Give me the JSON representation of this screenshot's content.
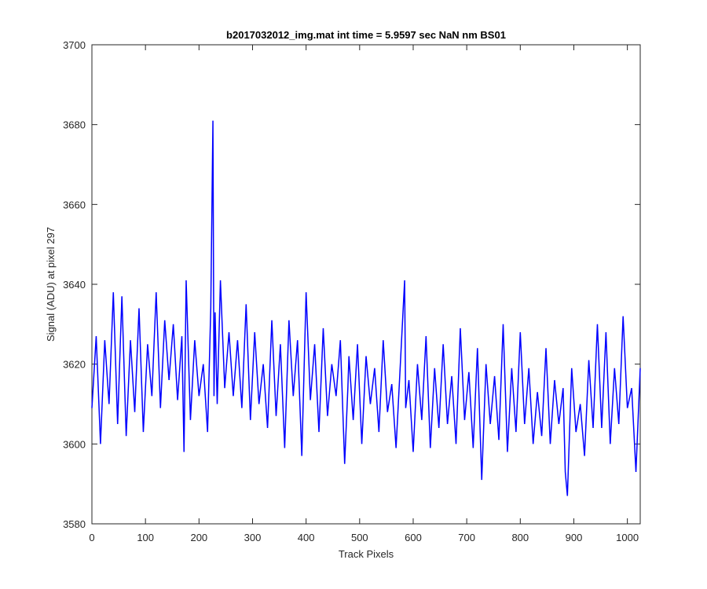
{
  "chart_data": {
    "type": "line",
    "title": "b2017032012_img.mat int time = 5.9597 sec  NaN nm BS01",
    "xlabel": "Track Pixels",
    "ylabel": "Signal (ADU) at pixel 297",
    "xlim": [
      0,
      1024
    ],
    "ylim": [
      3580,
      3700
    ],
    "xticks": [
      0,
      100,
      200,
      300,
      400,
      500,
      600,
      700,
      800,
      900,
      1000
    ],
    "yticks": [
      3580,
      3600,
      3620,
      3640,
      3660,
      3680,
      3700
    ],
    "grid": false,
    "legend": "none",
    "line_color": "#0000ff",
    "axes_color": "#262626",
    "series": [
      {
        "x": [
          0,
          8,
          16,
          24,
          32,
          40,
          48,
          56,
          64,
          72,
          80,
          88,
          96,
          104,
          112,
          120,
          128,
          136,
          144,
          152,
          160,
          168,
          172,
          176,
          184,
          192,
          200,
          208,
          216,
          222,
          226,
          228,
          230,
          234,
          240,
          248,
          256,
          264,
          272,
          280,
          288,
          296,
          304,
          312,
          320,
          328,
          336,
          344,
          352,
          360,
          368,
          376,
          384,
          392,
          400,
          408,
          416,
          424,
          432,
          440,
          448,
          456,
          464,
          472,
          478,
          480,
          488,
          496,
          504,
          512,
          520,
          528,
          536,
          544,
          552,
          560,
          568,
          576,
          584,
          586,
          592,
          600,
          608,
          616,
          624,
          632,
          640,
          648,
          656,
          664,
          672,
          680,
          688,
          696,
          704,
          712,
          720,
          728,
          736,
          744,
          752,
          760,
          768,
          776,
          784,
          792,
          800,
          808,
          816,
          824,
          832,
          840,
          848,
          856,
          864,
          872,
          880,
          884,
          888,
          896,
          904,
          912,
          920,
          928,
          936,
          944,
          952,
          960,
          968,
          976,
          984,
          992,
          1000,
          1008,
          1016,
          1024
        ],
        "y": [
          3609,
          3627,
          3600,
          3626,
          3610,
          3638,
          3605,
          3637,
          3602,
          3626,
          3608,
          3634,
          3603,
          3625,
          3612,
          3638,
          3609,
          3631,
          3616,
          3630,
          3611,
          3627,
          3598,
          3641,
          3606,
          3626,
          3612,
          3620,
          3603,
          3634,
          3681,
          3612,
          3633,
          3610,
          3641,
          3614,
          3628,
          3612,
          3626,
          3609,
          3635,
          3606,
          3628,
          3610,
          3620,
          3604,
          3631,
          3607,
          3625,
          3599,
          3631,
          3612,
          3626,
          3597,
          3638,
          3611,
          3625,
          3603,
          3629,
          3607,
          3620,
          3612,
          3626,
          3595,
          3614,
          3622,
          3606,
          3625,
          3600,
          3622,
          3610,
          3619,
          3603,
          3626,
          3608,
          3615,
          3599,
          3620,
          3641,
          3609,
          3616,
          3598,
          3620,
          3606,
          3627,
          3599,
          3619,
          3604,
          3625,
          3605,
          3617,
          3600,
          3629,
          3606,
          3618,
          3599,
          3624,
          3591,
          3620,
          3605,
          3617,
          3601,
          3630,
          3598,
          3619,
          3603,
          3628,
          3605,
          3619,
          3600,
          3613,
          3602,
          3624,
          3600,
          3616,
          3605,
          3614,
          3593,
          3587,
          3619,
          3603,
          3610,
          3597,
          3621,
          3604,
          3630,
          3604,
          3628,
          3600,
          3619,
          3605,
          3632,
          3609,
          3614,
          3593,
          3619
        ]
      }
    ]
  }
}
